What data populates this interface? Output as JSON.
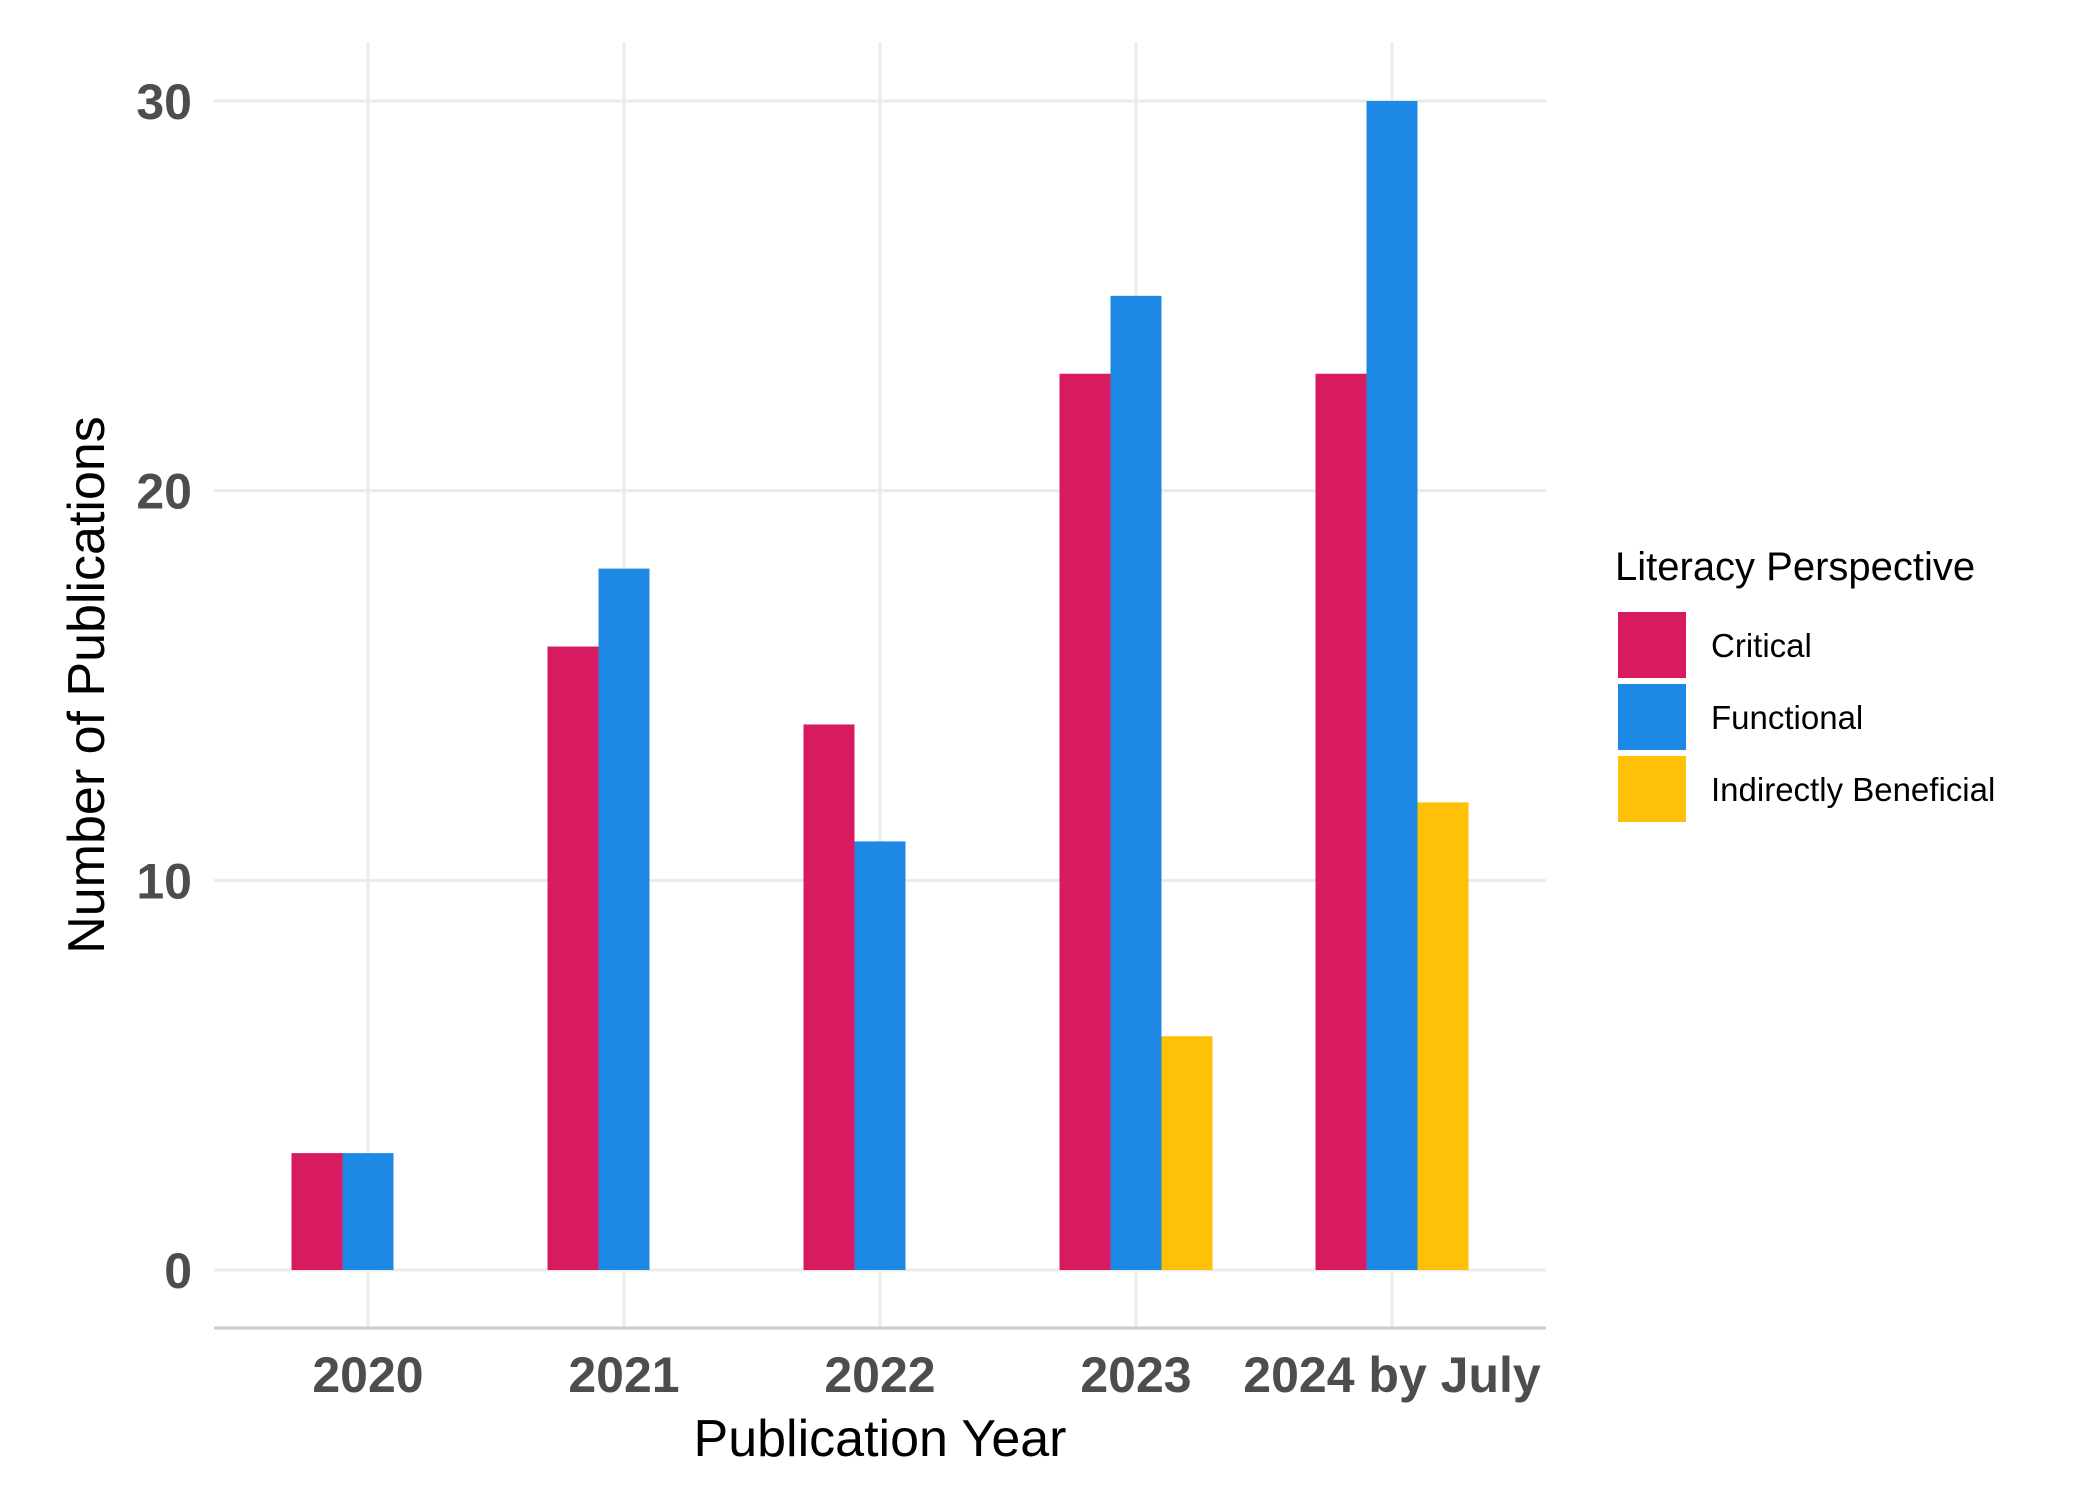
{
  "chart_data": {
    "type": "bar",
    "title": "",
    "xlabel": "Publication Year",
    "ylabel": "Number of Publications",
    "categories": [
      "2020",
      "2021",
      "2022",
      "2023",
      "2024 by July"
    ],
    "series": [
      {
        "name": "Critical",
        "color": "#D81B60",
        "values": [
          3,
          16,
          14,
          23,
          23
        ]
      },
      {
        "name": "Functional",
        "color": "#1E88E5",
        "values": [
          3,
          18,
          11,
          25,
          30
        ]
      },
      {
        "name": "Indirectly Beneficial",
        "color": "#FFC107",
        "values": [
          0,
          0,
          0,
          6,
          12
        ]
      }
    ],
    "ylim": [
      0,
      30
    ],
    "yticks": [
      0,
      10,
      20,
      30
    ],
    "grid": true,
    "legend": {
      "title": "Literacy Perspective",
      "placement": "right"
    }
  }
}
